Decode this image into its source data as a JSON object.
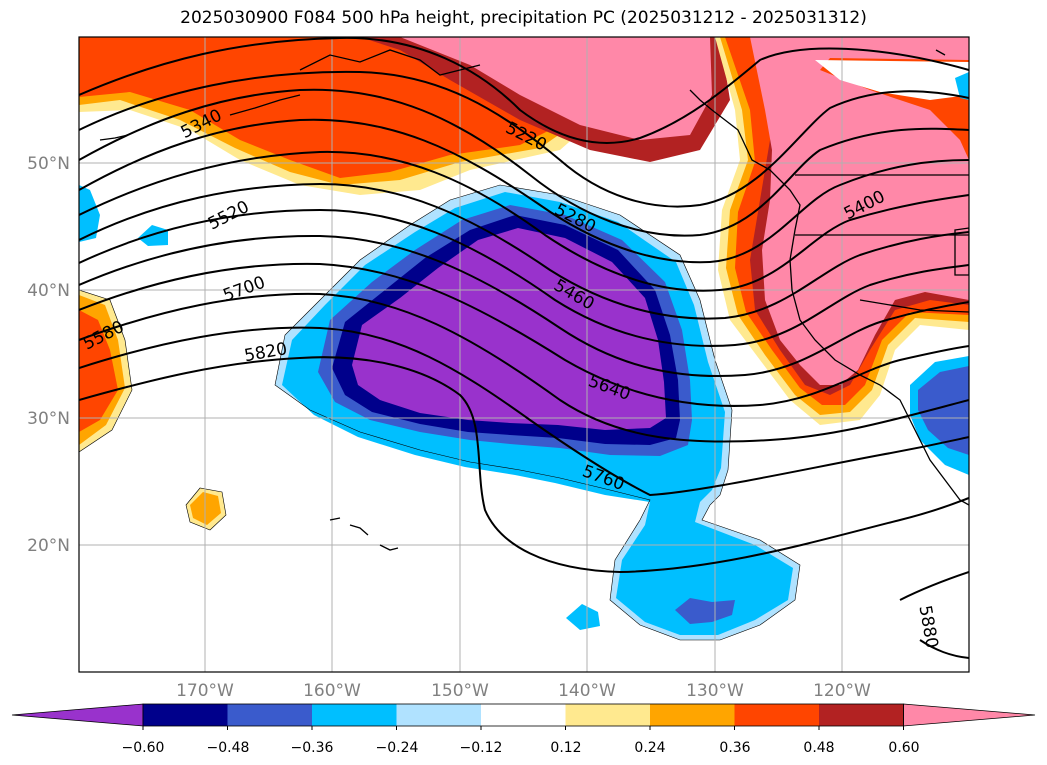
{
  "title": "2025030900 F084 500 hPa height, precipitation PC (2025031212 - 2025031312)",
  "map": {
    "latitude_labels": [
      "50°N",
      "40°N",
      "30°N",
      "20°N"
    ],
    "longitude_labels": [
      "170°W",
      "160°W",
      "150°W",
      "140°W",
      "130°W",
      "120°W"
    ],
    "height_contour_labels": [
      "5340",
      "5220",
      "5520",
      "5280",
      "5400",
      "5700",
      "5460",
      "5580",
      "5820",
      "5640",
      "5760",
      "5880"
    ]
  },
  "colorbar": {
    "tick_labels": [
      "−0.60",
      "−0.48",
      "−0.36",
      "−0.24",
      "−0.12",
      "0.12",
      "0.24",
      "0.36",
      "0.48",
      "0.60"
    ],
    "colors": [
      "#9932cc",
      "#00008b",
      "#3a5bcc",
      "#00bfff",
      "#b0e2ff",
      "#ffffff",
      "#ffe98f",
      "#ffa500",
      "#ff4500",
      "#b22222",
      "#ff88a8"
    ]
  }
}
